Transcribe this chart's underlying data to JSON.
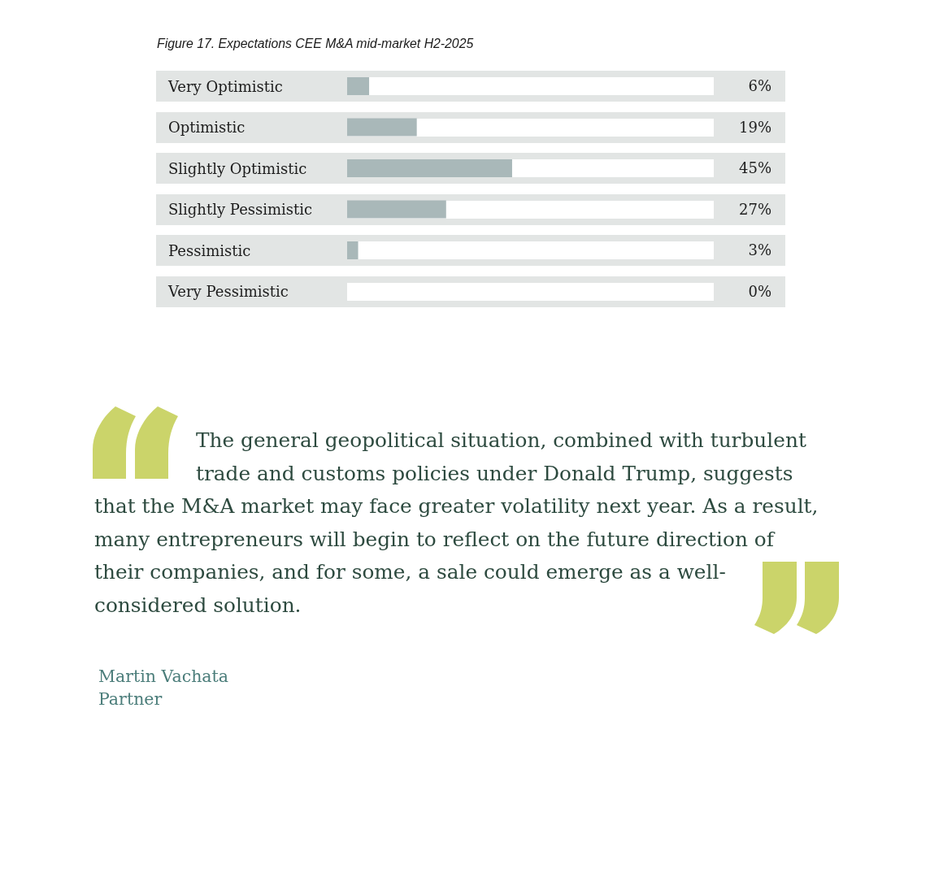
{
  "chart_data": {
    "type": "bar",
    "orientation": "horizontal",
    "title": "Figure 17. Expectations CEE M&A mid-market H2-2025",
    "categories": [
      "Very Optimistic",
      "Optimistic",
      "Slightly Optimistic",
      "Slightly Pessimistic",
      "Pessimistic",
      "Very Pessimistic"
    ],
    "values": [
      6,
      19,
      45,
      27,
      3,
      0
    ],
    "color": "#a9b8b9",
    "value_labels": [
      "6%",
      "19%",
      "45%",
      "27%",
      "3%",
      "0%"
    ],
    "tick_labels": "y",
    "annotations": [
      "The general geopolitical situation, combined with turbulent trade and customs policies under Donald Trump, suggests that the M&A market may face greater volatility next year. As a result, many entrepreneurs will begin to reflect on the future direction of their companies, and for some, a sale could emerge as a well-considered solution.",
      "Martin Vachata",
      "Partner"
    ]
  }
}
